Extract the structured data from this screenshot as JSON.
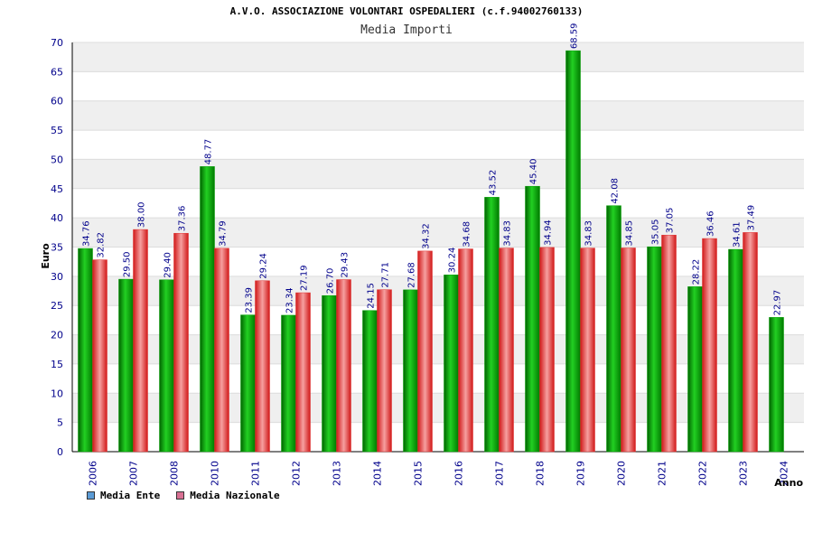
{
  "chart_data": {
    "type": "bar",
    "title": "A.V.O. ASSOCIAZIONE VOLONTARI OSPEDALIERI (c.f.94002760133)",
    "subtitle": "Media Importi",
    "xlabel": "Anno",
    "ylabel": "Euro",
    "ylim": [
      0,
      70
    ],
    "ytick_step": 5,
    "grid": true,
    "legend_position": "bottom-left",
    "categories": [
      "2006",
      "2007",
      "2008",
      "2010",
      "2011",
      "2012",
      "2013",
      "2014",
      "2015",
      "2016",
      "2017",
      "2018",
      "2019",
      "2020",
      "2021",
      "2022",
      "2023",
      "2024"
    ],
    "series": [
      {
        "name": "Media Ente",
        "color": "#00a000",
        "legend_color": "#5b9bd5",
        "values": [
          34.76,
          29.5,
          29.4,
          48.77,
          23.39,
          23.34,
          26.7,
          24.15,
          27.68,
          30.24,
          43.52,
          45.4,
          68.59,
          42.08,
          35.05,
          28.22,
          34.61,
          22.97
        ],
        "labels": [
          "34.76",
          "29.50",
          "29.40",
          "48.77",
          "23.39",
          "23.34",
          "26.70",
          "24.15",
          "27.68",
          "30.24",
          "43.52",
          "45.40",
          "68.59",
          "42.08",
          "35.05",
          "28.22",
          "34.61",
          "22.97"
        ]
      },
      {
        "name": "Media Nazionale",
        "color": "#e03030",
        "legend_color": "#d87093",
        "values": [
          32.82,
          38.0,
          37.36,
          34.79,
          29.24,
          27.19,
          29.43,
          27.71,
          34.32,
          34.68,
          34.83,
          34.94,
          34.83,
          34.85,
          37.05,
          36.46,
          37.49,
          null
        ],
        "labels": [
          "32.82",
          "38.00",
          "37.36",
          "34.79",
          "29.24",
          "27.19",
          "29.43",
          "27.71",
          "34.32",
          "34.68",
          "34.83",
          "34.94",
          "34.83",
          "34.85",
          "37.05",
          "36.46",
          "37.49",
          ""
        ]
      }
    ]
  }
}
